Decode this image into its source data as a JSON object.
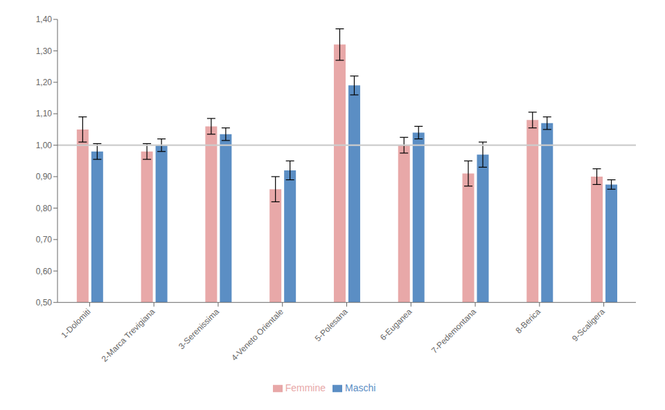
{
  "chart_data": {
    "type": "bar",
    "categories": [
      "1-Dolomiti",
      "2-Marca Trevigiana",
      "3-Serenissima",
      "4-Veneto Orientale",
      "5-Polesana",
      "6-Euganea",
      "7-Pedemontana",
      "8-Berica",
      "9-Scaligera"
    ],
    "series": [
      {
        "name": "Femmine",
        "color": "#e8a8a8",
        "values": [
          1.05,
          0.98,
          1.06,
          0.86,
          1.32,
          1.0,
          0.91,
          1.08,
          0.9
        ],
        "errors": [
          0.04,
          0.025,
          0.025,
          0.04,
          0.05,
          0.025,
          0.04,
          0.025,
          0.025
        ]
      },
      {
        "name": "Maschi",
        "color": "#5b8ec4",
        "values": [
          0.98,
          1.0,
          1.035,
          0.92,
          1.19,
          1.04,
          0.97,
          1.07,
          0.875
        ],
        "errors": [
          0.025,
          0.02,
          0.02,
          0.03,
          0.03,
          0.02,
          0.04,
          0.02,
          0.015
        ]
      }
    ],
    "reference_line": 1.0,
    "ylim": [
      0.5,
      1.4
    ],
    "yticks": [
      {
        "value": 0.5,
        "label": "0,50"
      },
      {
        "value": 0.6,
        "label": "0,60"
      },
      {
        "value": 0.7,
        "label": "0,70"
      },
      {
        "value": 0.8,
        "label": "0,80"
      },
      {
        "value": 0.9,
        "label": "0,90"
      },
      {
        "value": 1.0,
        "label": "1,00"
      },
      {
        "value": 1.1,
        "label": "1,10"
      },
      {
        "value": 1.2,
        "label": "1,20"
      },
      {
        "value": 1.3,
        "label": "1,30"
      },
      {
        "value": 1.4,
        "label": "1,40"
      }
    ],
    "grid": false,
    "legend": "bottom"
  }
}
